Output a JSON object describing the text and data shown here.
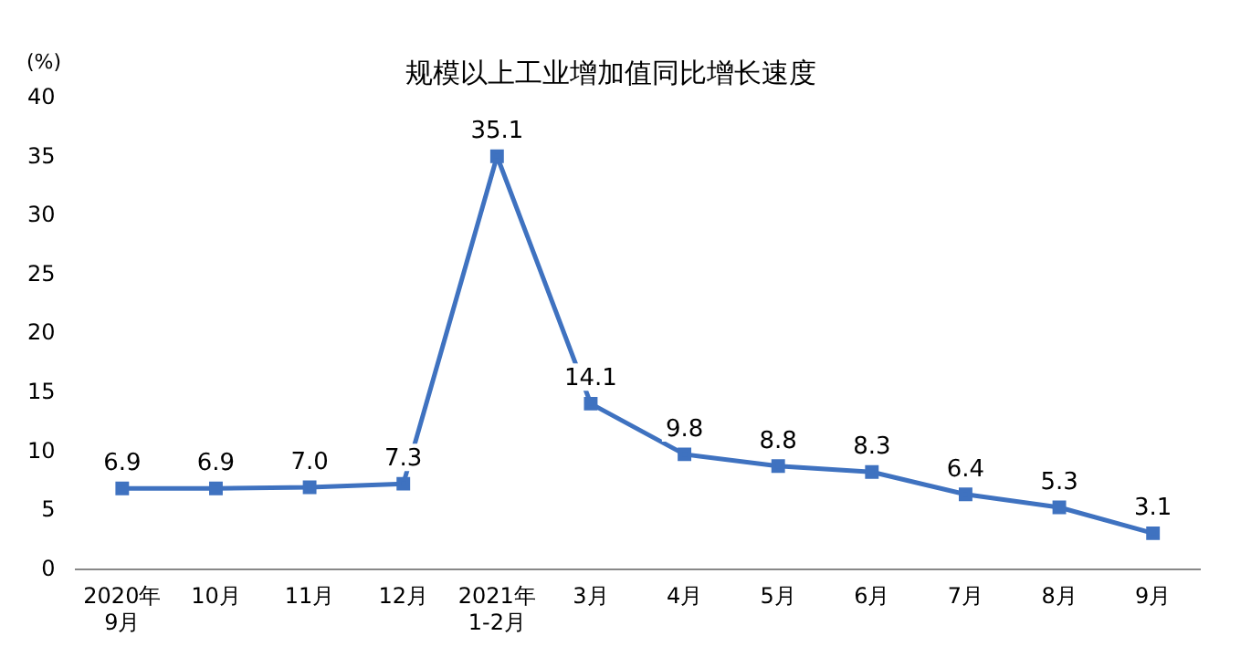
{
  "chart_data": {
    "type": "line",
    "title": "规模以上工业增加值同比增长速度",
    "ylabel": "(%)",
    "categories": [
      "2020年\n9月",
      "10月",
      "11月",
      "12月",
      "2021年\n1-2月",
      "3月",
      "4月",
      "5月",
      "6月",
      "7月",
      "8月",
      "9月"
    ],
    "series": [
      {
        "color": "#3f72c0",
        "values": [
          6.9,
          6.9,
          7.0,
          7.3,
          35.1,
          14.1,
          9.8,
          8.8,
          8.3,
          6.4,
          5.3,
          3.1
        ],
        "value_labels": [
          "6.9",
          "6.9",
          "7.0",
          "7.3",
          "35.1",
          "14.1",
          "9.8",
          "8.8",
          "8.3",
          "6.4",
          "5.3",
          "3.1"
        ]
      }
    ],
    "ylim": [
      0,
      40
    ],
    "yticks": [
      0,
      5,
      10,
      15,
      20,
      25,
      30,
      35,
      40
    ],
    "grid": false,
    "legend": false,
    "marker": "square",
    "line_style": "solid"
  }
}
